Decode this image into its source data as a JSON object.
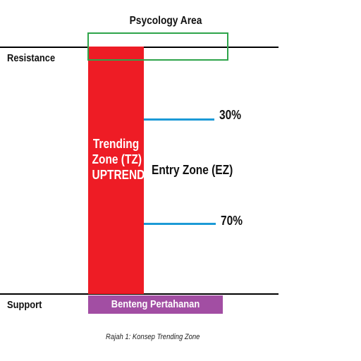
{
  "diagram": {
    "psychology_area_label": "Psycology Area",
    "resistance_label": "Resistance",
    "support_label": "Support",
    "trending_zone_lines": [
      "Trending",
      "Zone (TZ)",
      "UPTREND"
    ],
    "entry_zone_label": "Entry Zone (EZ)",
    "level_30_label": "30%",
    "level_70_label": "70%",
    "defense_label": "Benteng Pertahanan",
    "caption": "Rajah 1: Konsep Trending Zone"
  },
  "colors": {
    "trending_zone": "#ee1c25",
    "psychology_box": "#2ea44a",
    "level_lines": "#1c9ad6",
    "defense_bar": "#a24ea3",
    "boundary_lines": "#000000"
  }
}
